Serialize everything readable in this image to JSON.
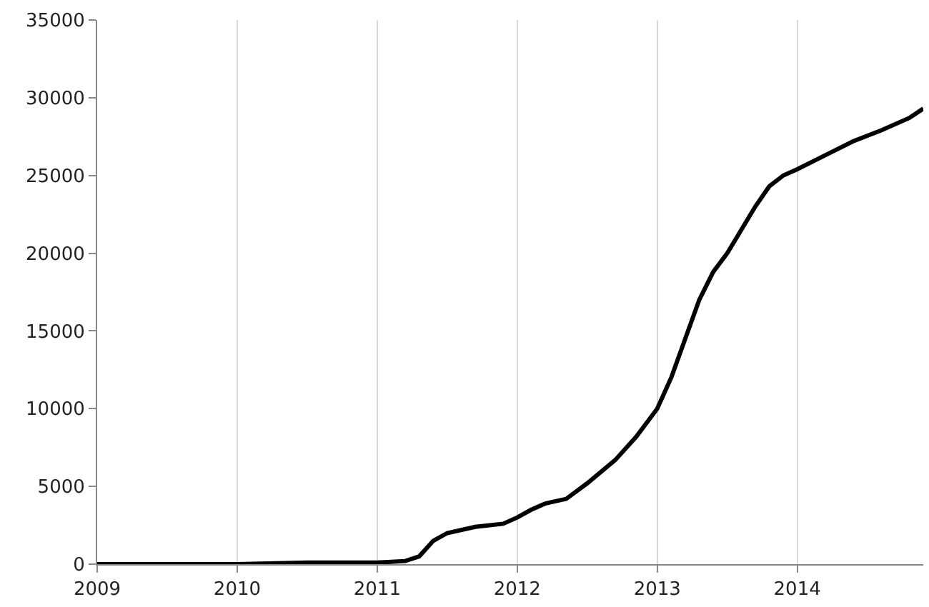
{
  "chart_data": {
    "type": "line",
    "x": [
      2009,
      2009.5,
      2010,
      2010.5,
      2011,
      2011.2,
      2011.3,
      2011.4,
      2011.5,
      2011.7,
      2011.9,
      2012,
      2012.1,
      2012.2,
      2012.35,
      2012.5,
      2012.7,
      2012.85,
      2013,
      2013.1,
      2013.2,
      2013.3,
      2013.4,
      2013.5,
      2013.6,
      2013.7,
      2013.8,
      2013.9,
      2014,
      2014.2,
      2014.4,
      2014.6,
      2014.8,
      2014.9
    ],
    "series": [
      {
        "color": "#000000",
        "values": [
          0,
          0,
          0,
          100,
          100,
          200,
          500,
          1500,
          2000,
          2400,
          2600,
          3000,
          3500,
          3900,
          4200,
          5200,
          6700,
          8200,
          10000,
          12000,
          14500,
          17000,
          18800,
          20000,
          21500,
          23000,
          24300,
          25000,
          25400,
          26300,
          27200,
          27900,
          28700,
          29300
        ]
      }
    ],
    "xlim": [
      2009,
      2014.9
    ],
    "xticks": [
      2009,
      2010,
      2011,
      2012,
      2013,
      2014
    ],
    "ylim": [
      0,
      35000
    ],
    "yticks": [
      0,
      5000,
      10000,
      15000,
      20000,
      25000,
      30000,
      35000
    ],
    "grid": "x",
    "marker": "none",
    "line_style": "solid"
  }
}
